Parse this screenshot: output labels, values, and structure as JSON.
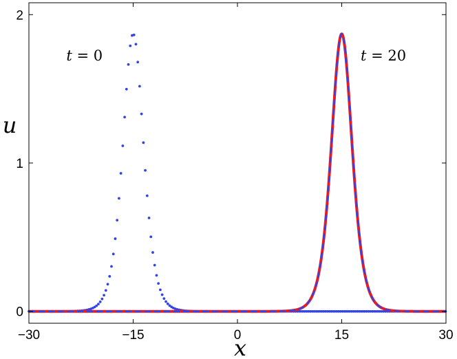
{
  "chart_data": {
    "type": "line",
    "xlabel": "x",
    "ylabel": "u",
    "xlim": [
      -30,
      30
    ],
    "ylim": [
      -0.08,
      2.08
    ],
    "grid": false,
    "x_ticks": [
      {
        "value": -30,
        "label": "−30"
      },
      {
        "value": -15,
        "label": "−15"
      },
      {
        "value": 0,
        "label": "0"
      },
      {
        "value": 15,
        "label": "15"
      },
      {
        "value": 30,
        "label": "30"
      }
    ],
    "y_ticks": [
      {
        "value": 0,
        "label": "0"
      },
      {
        "value": 1,
        "label": "1"
      },
      {
        "value": 2,
        "label": "2"
      }
    ],
    "annotations": [
      {
        "var": "t",
        "rest": " = 0",
        "x": -22,
        "y": 1.69
      },
      {
        "var": "t",
        "rest": " = 20",
        "x": 21,
        "y": 1.69
      }
    ],
    "series": [
      {
        "style": "dotted",
        "color": "#3344e6",
        "amplitude": 1.87,
        "center": -15,
        "width": 2.0,
        "x_step": 0.27
      },
      {
        "style": "solid",
        "color": "#ee1a1a",
        "amplitude": 1.87,
        "center": 15,
        "width": 2.0,
        "x_step": 0.05
      },
      {
        "style": "dashed",
        "color": "#3344e6",
        "amplitude": 1.87,
        "center": 15,
        "width": 2.0,
        "x_step": 0.05
      }
    ]
  }
}
